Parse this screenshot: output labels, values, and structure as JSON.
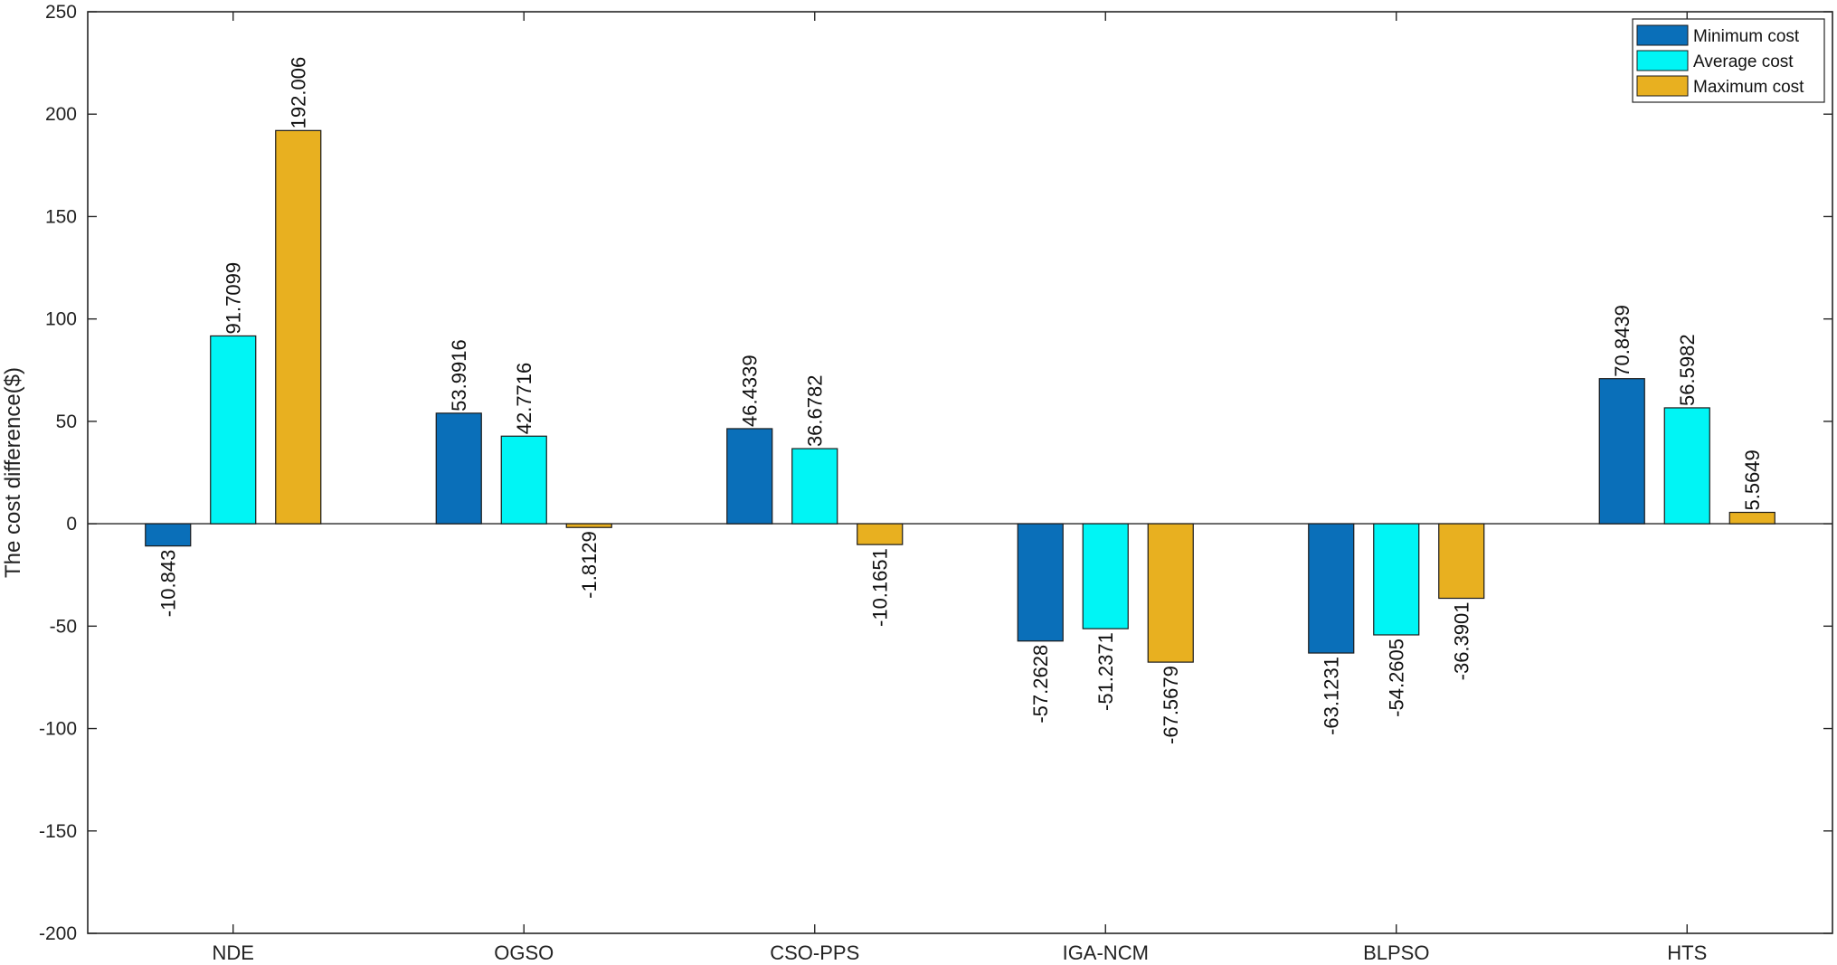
{
  "chart_data": {
    "type": "bar",
    "title": "",
    "xlabel": "",
    "ylabel": "The cost difference($)",
    "ylim": [
      -200,
      250
    ],
    "yticks": [
      -200,
      -150,
      -100,
      -50,
      0,
      50,
      100,
      150,
      200,
      250
    ],
    "grid": false,
    "legend_position": "top-right",
    "categories": [
      "NDE",
      "OGSO",
      "CSO-PPS",
      "IGA-NCM",
      "BLPSO",
      "HTS"
    ],
    "series": [
      {
        "name": "Minimum cost",
        "color": "#0a6fb9",
        "values": [
          -10.843,
          53.9916,
          46.4339,
          -57.2628,
          -63.1231,
          70.8439
        ],
        "labels": [
          "-10.843",
          "53.9916",
          "46.4339",
          "-57.2628",
          "-63.1231",
          "70.8439"
        ]
      },
      {
        "name": "Average cost",
        "color": "#00f5f5",
        "values": [
          91.7099,
          42.7716,
          36.6782,
          -51.2371,
          -54.2605,
          56.5982
        ],
        "labels": [
          "91.7099",
          "42.7716",
          "36.6782",
          "-51.2371",
          "-54.2605",
          "56.5982"
        ]
      },
      {
        "name": "Maximum cost",
        "color": "#e8b020",
        "values": [
          192.006,
          -1.8129,
          -10.1651,
          -67.5679,
          -36.3901,
          5.5649
        ],
        "labels": [
          "192.006",
          "-1.8129",
          "-10.1651",
          "-67.5679",
          "-36.3901",
          "5.5649"
        ]
      }
    ]
  }
}
